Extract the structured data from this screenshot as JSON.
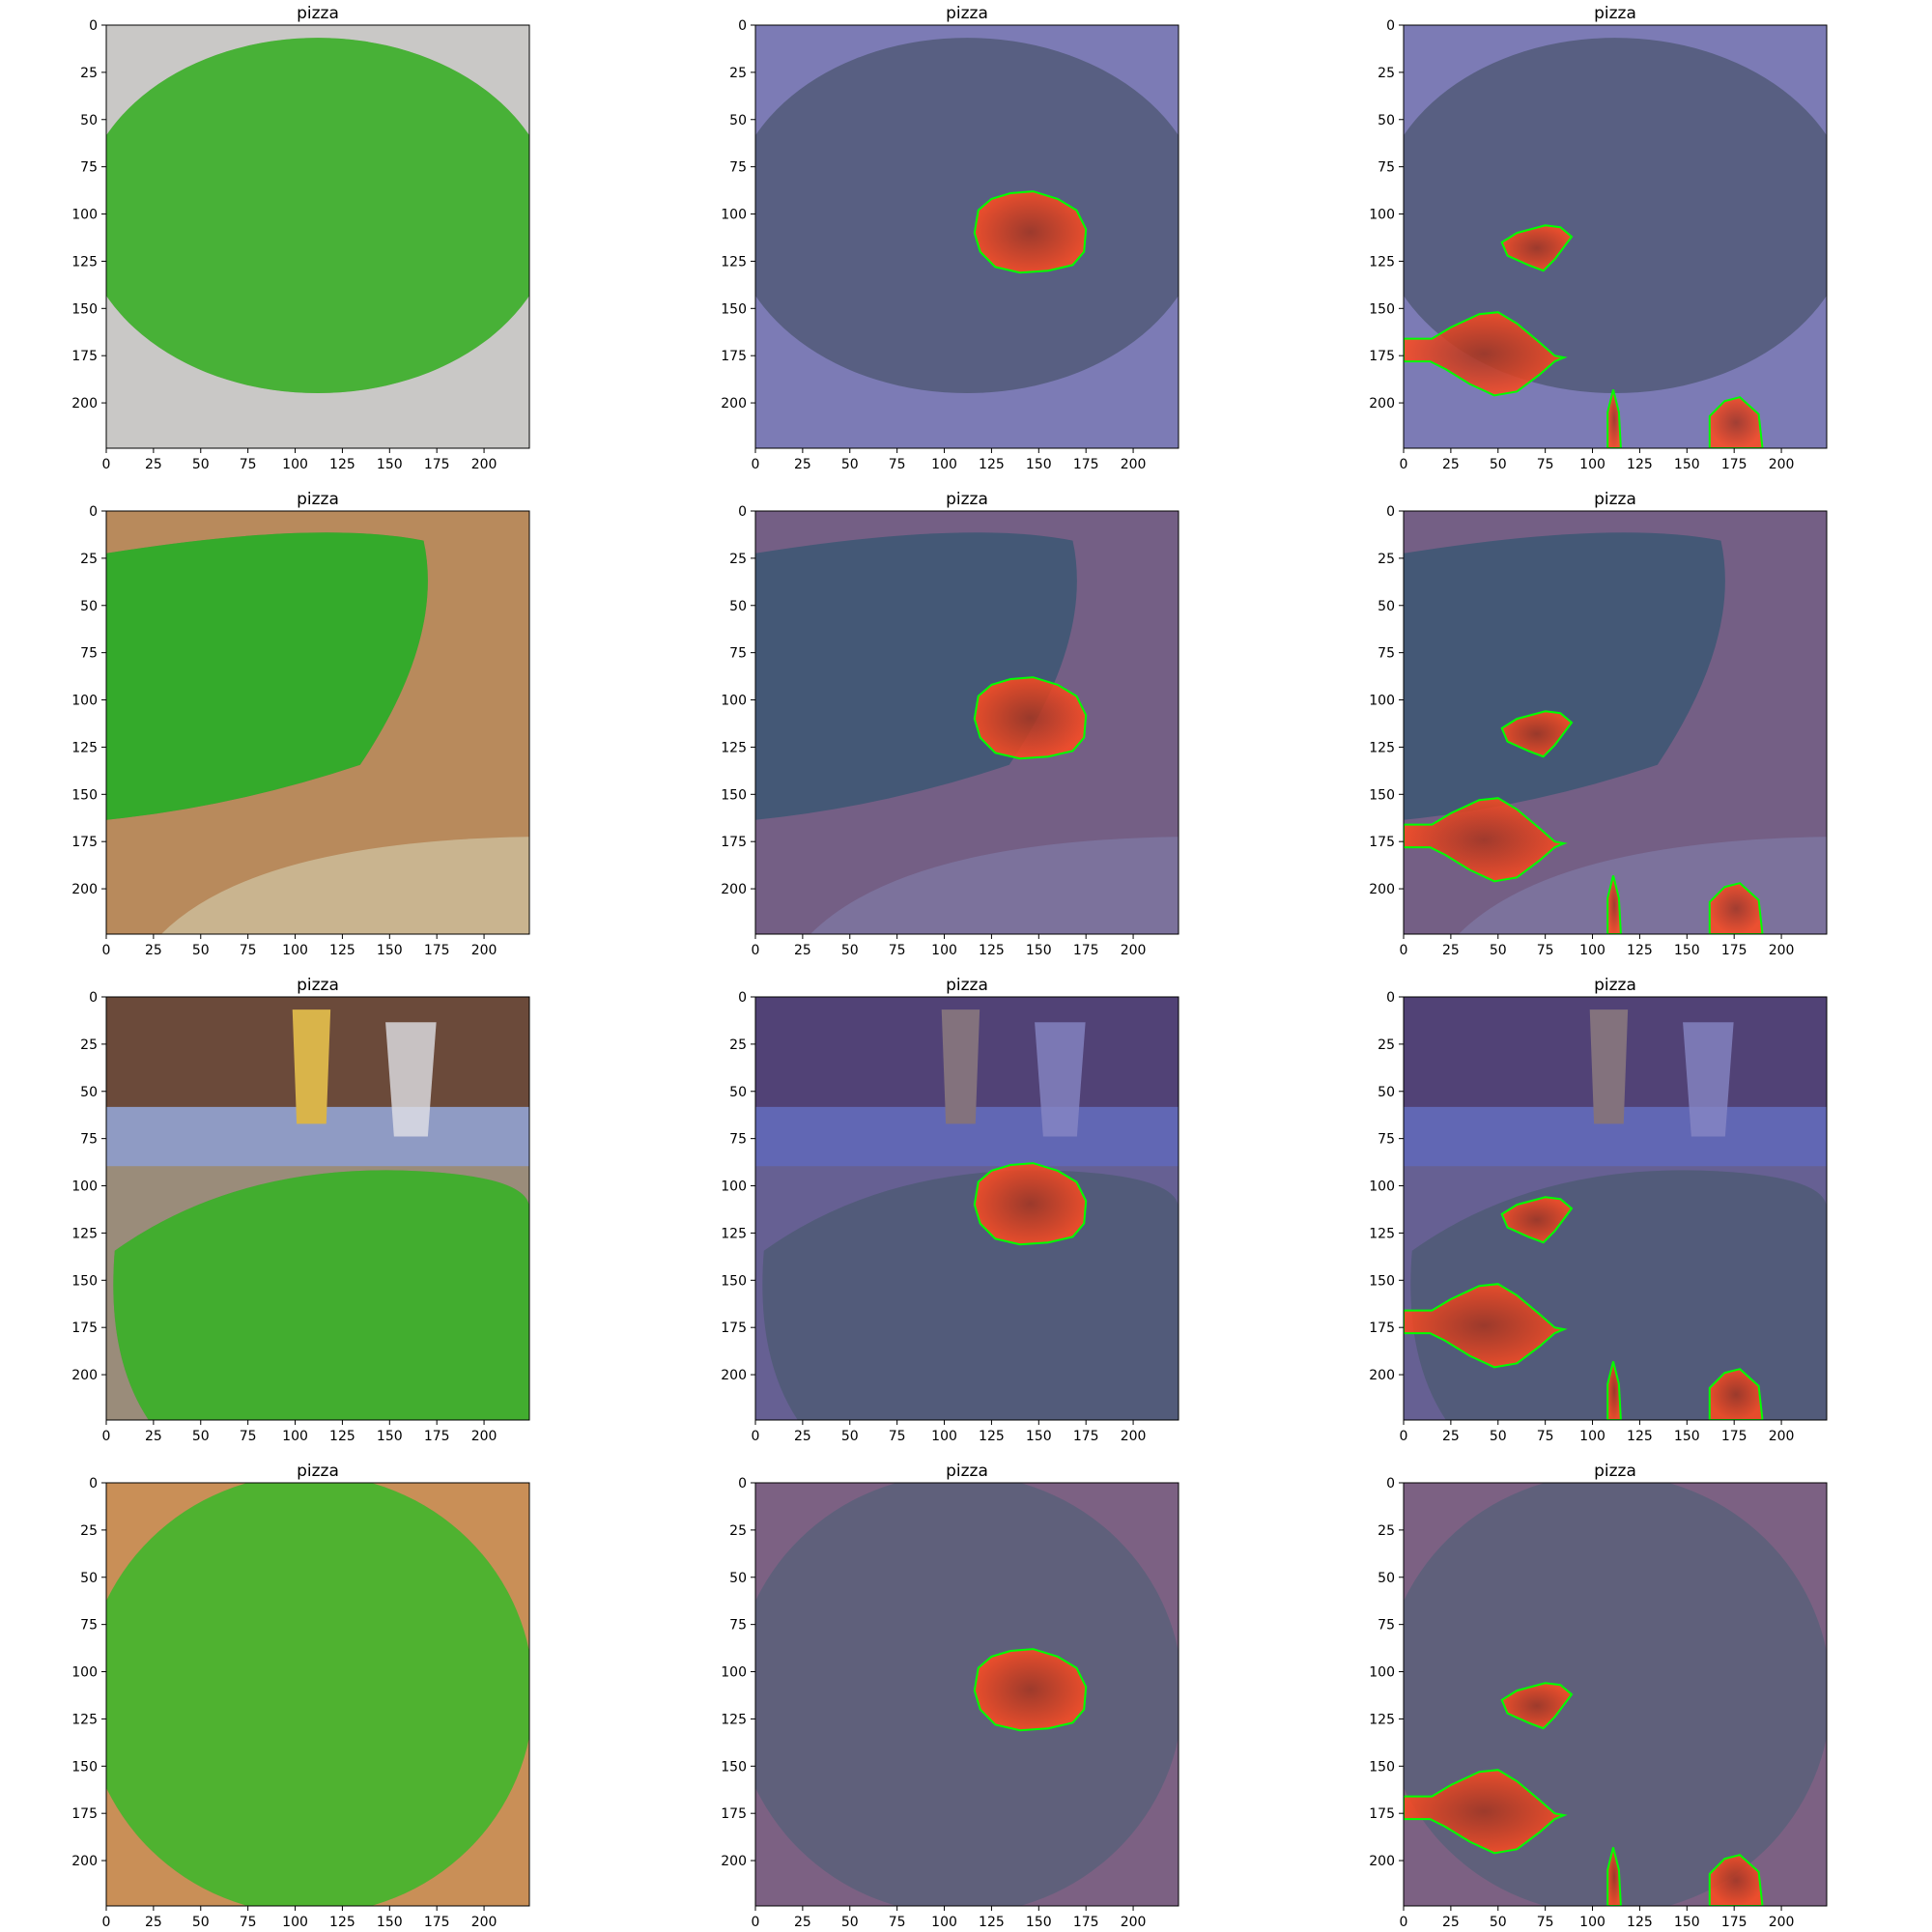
{
  "figure": {
    "panel_title": "pizza",
    "x_ticks": [
      "0",
      "25",
      "50",
      "75",
      "100",
      "125",
      "150",
      "175",
      "200"
    ],
    "y_ticks": [
      "0",
      "25",
      "50",
      "75",
      "100",
      "125",
      "150",
      "175",
      "200"
    ],
    "tick_values": [
      0,
      25,
      50,
      75,
      100,
      125,
      150,
      175,
      200
    ],
    "axis_range": [
      0,
      224
    ],
    "rows": 4,
    "columns": 3
  },
  "rows": [
    {
      "scene": "pizza-on-pan",
      "photo_colors": {
        "bg": "#c9c8c6",
        "food": "#7a8a55",
        "accent": "#b9b8b4"
      }
    },
    {
      "scene": "pizza-on-cutting-board",
      "photo_colors": {
        "bg": "#b88a5c",
        "food": "#4f7a3a",
        "accent": "#d9c29a"
      }
    },
    {
      "scene": "pizza-with-beer-glasses",
      "photo_colors": {
        "bg": "#9a8c7a",
        "food": "#6d8044",
        "accent": "#e0e0e6"
      }
    },
    {
      "scene": "pizza-in-box",
      "photo_colors": {
        "bg": "#c98f57",
        "food": "#8a8d46",
        "accent": "#d7a06a"
      }
    }
  ],
  "colors": {
    "mask_green": "#1fd21f",
    "overlay_blue": "#3c3ca8",
    "mask_red": "#e0301e",
    "outline": "#00ff00"
  }
}
